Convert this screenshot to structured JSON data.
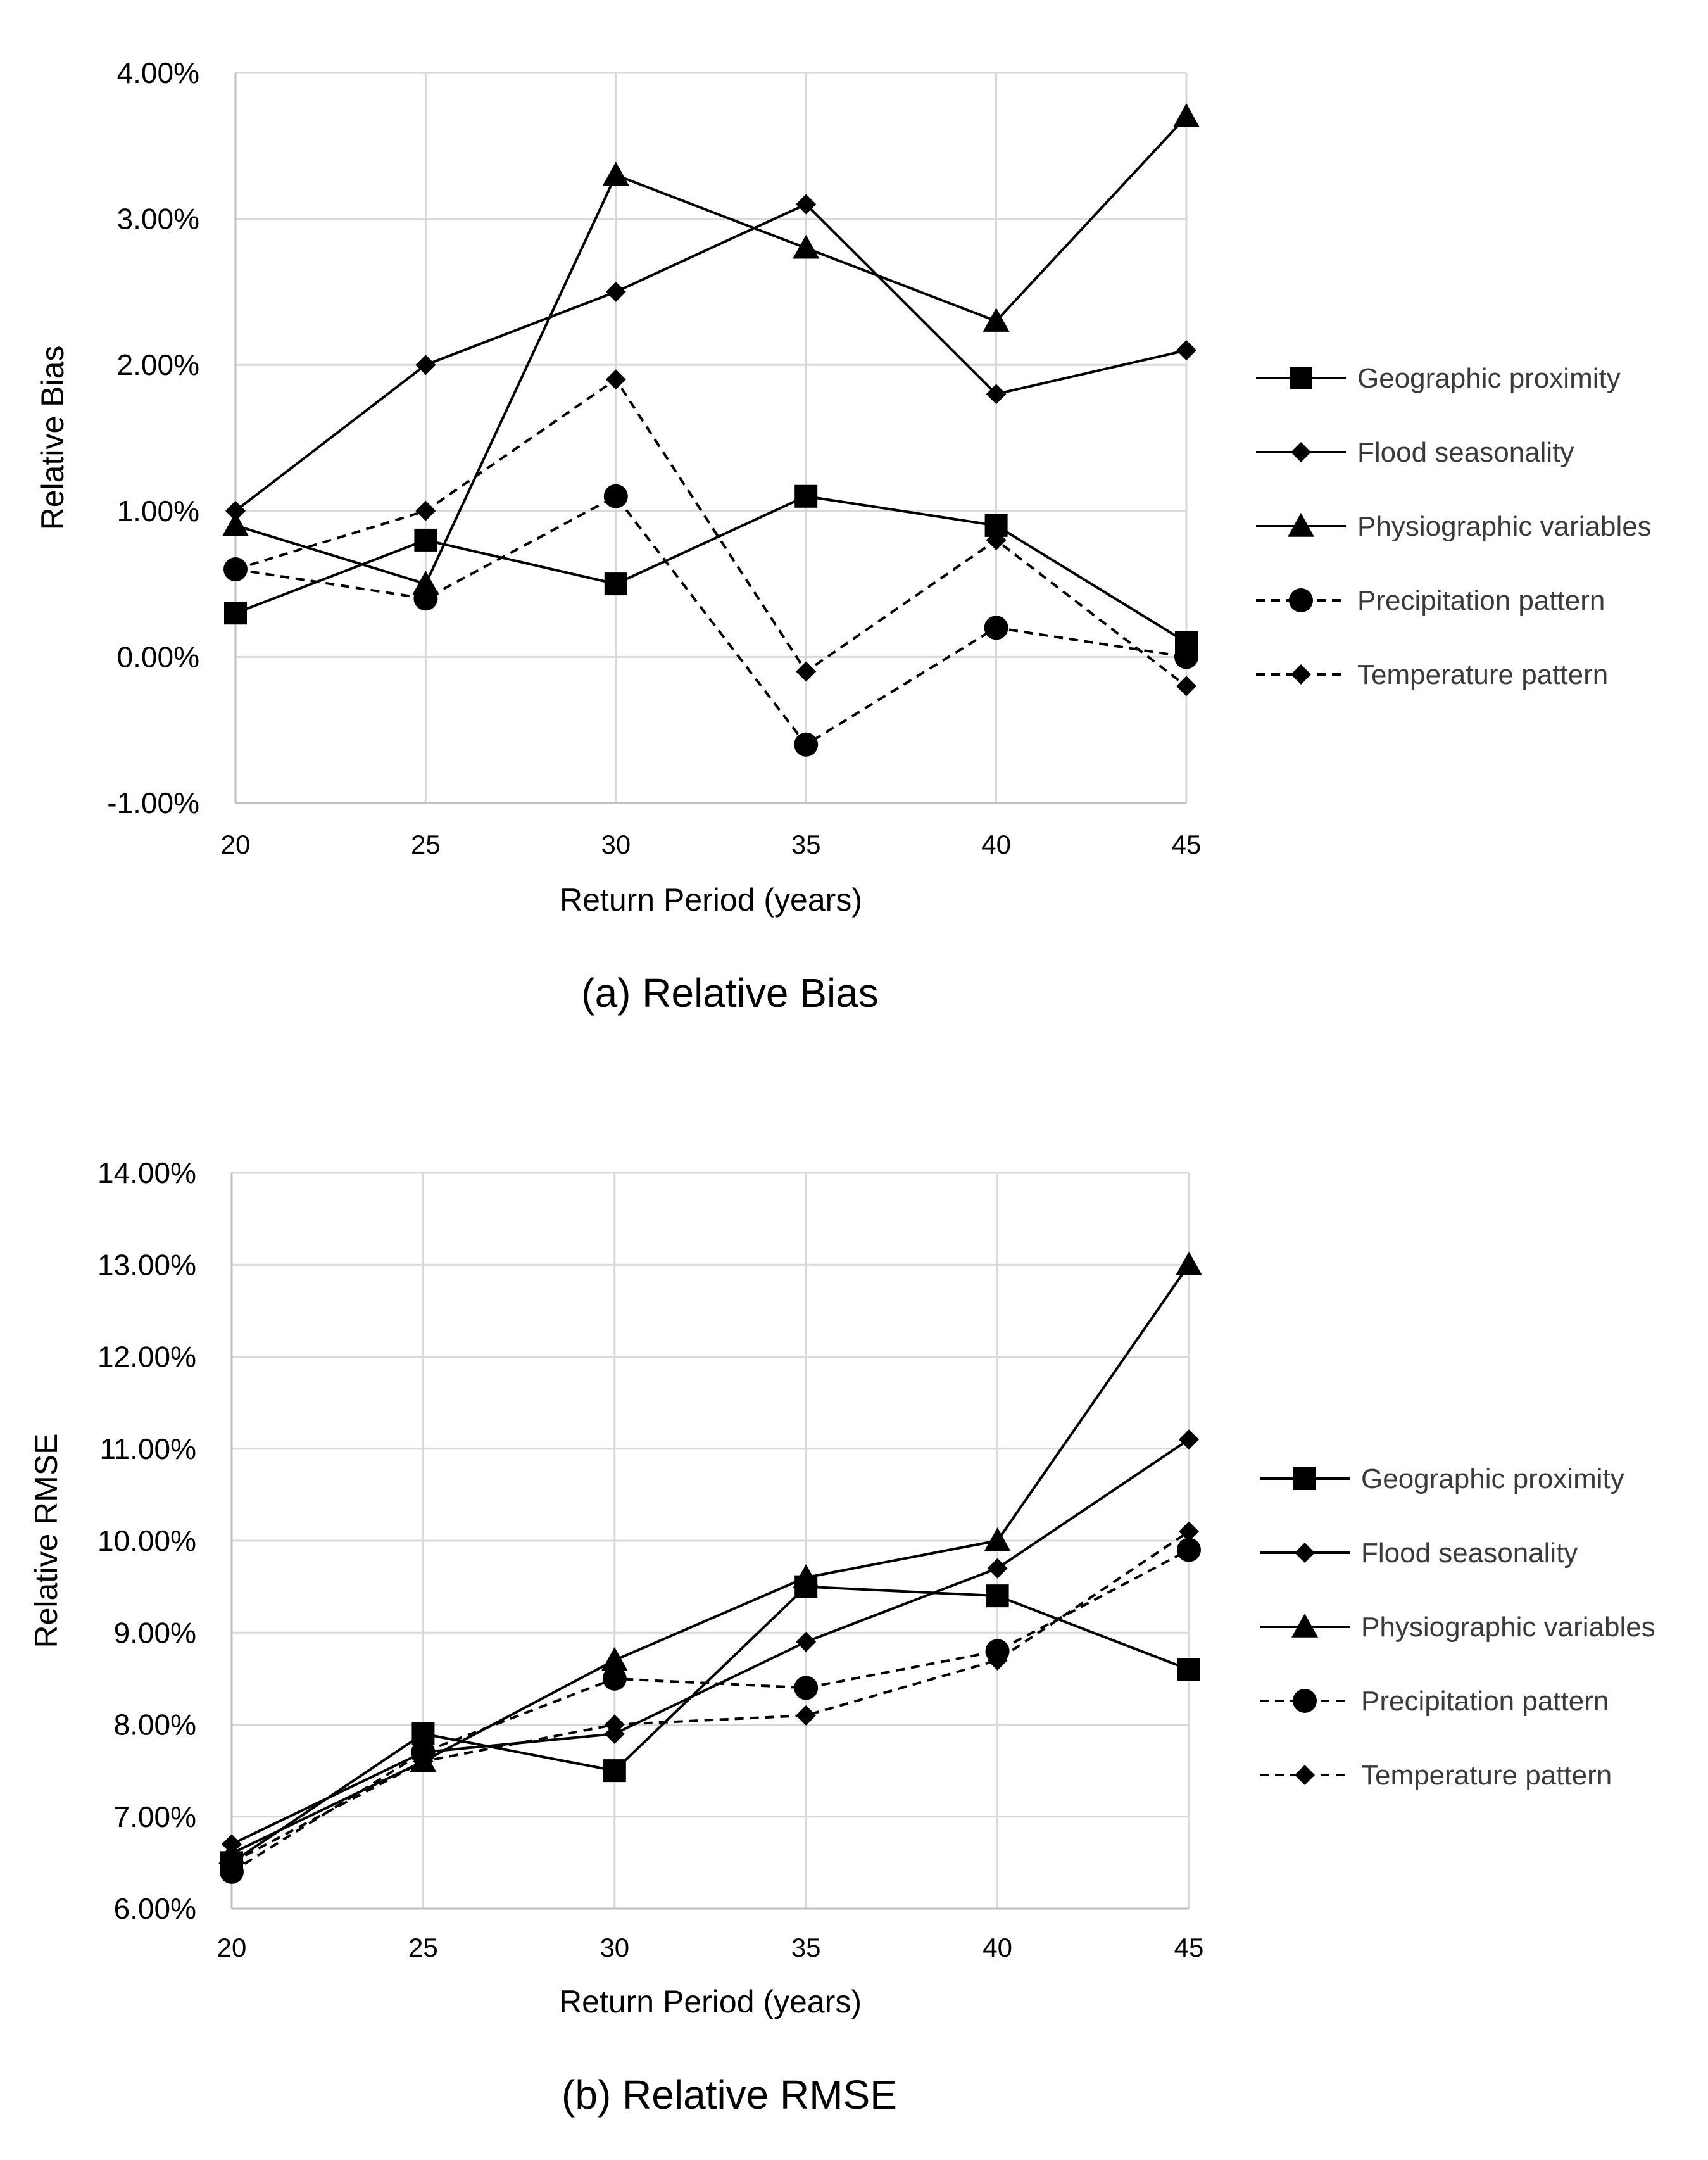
{
  "chart_data": [
    {
      "type": "line",
      "caption": "(a) Relative Bias",
      "xlabel": "Return Period (years)",
      "ylabel": "Relative Bias",
      "x": [
        20,
        25,
        30,
        35,
        40,
        45
      ],
      "ylim": [
        -1.0,
        4.0
      ],
      "yticks": [
        -1.0,
        0.0,
        1.0,
        2.0,
        3.0,
        4.0
      ],
      "ytick_labels": [
        "-1.00%",
        "0.00%",
        "1.00%",
        "2.00%",
        "3.00%",
        "4.00%"
      ],
      "grid": true,
      "legend_position": "right",
      "series": [
        {
          "name": "Geographic proximity",
          "marker": "square",
          "dash": "solid",
          "values": [
            0.3,
            0.8,
            0.5,
            1.1,
            0.9,
            0.1
          ]
        },
        {
          "name": "Flood seasonality",
          "marker": "diamond",
          "dash": "solid",
          "values": [
            1.0,
            2.0,
            2.5,
            3.1,
            1.8,
            2.1
          ]
        },
        {
          "name": "Physiographic variables",
          "marker": "triangle",
          "dash": "solid",
          "values": [
            0.9,
            0.5,
            3.3,
            2.8,
            2.3,
            3.7
          ]
        },
        {
          "name": "Precipitation pattern",
          "marker": "circle",
          "dash": "dashed",
          "values": [
            0.6,
            0.4,
            1.1,
            -0.6,
            0.2,
            0.0
          ]
        },
        {
          "name": "Temperature pattern",
          "marker": "diamond",
          "dash": "dashed",
          "values": [
            0.6,
            1.0,
            1.9,
            -0.1,
            0.8,
            -0.2
          ]
        }
      ]
    },
    {
      "type": "line",
      "caption": "(b) Relative RMSE",
      "xlabel": "Return Period (years)",
      "ylabel": "Relative RMSE",
      "x": [
        20,
        25,
        30,
        35,
        40,
        45
      ],
      "ylim": [
        6.0,
        14.0
      ],
      "yticks": [
        6.0,
        7.0,
        8.0,
        9.0,
        10.0,
        11.0,
        12.0,
        13.0,
        14.0
      ],
      "ytick_labels": [
        "6.00%",
        "7.00%",
        "8.00%",
        "9.00%",
        "10.00%",
        "11.00%",
        "12.00%",
        "13.00%",
        "14.00%"
      ],
      "grid": true,
      "legend_position": "right",
      "series": [
        {
          "name": "Geographic proximity",
          "marker": "square",
          "dash": "solid",
          "values": [
            6.5,
            7.9,
            7.5,
            9.5,
            9.4,
            8.6
          ]
        },
        {
          "name": "Flood seasonality",
          "marker": "diamond",
          "dash": "solid",
          "values": [
            6.7,
            7.7,
            7.9,
            8.9,
            9.7,
            11.1
          ]
        },
        {
          "name": "Physiographic variables",
          "marker": "triangle",
          "dash": "solid",
          "values": [
            6.6,
            7.6,
            8.7,
            9.6,
            10.0,
            13.0
          ]
        },
        {
          "name": "Precipitation pattern",
          "marker": "circle",
          "dash": "dashed",
          "values": [
            6.4,
            7.7,
            8.5,
            8.4,
            8.8,
            9.9
          ]
        },
        {
          "name": "Temperature pattern",
          "marker": "diamond",
          "dash": "dashed",
          "values": [
            6.5,
            7.6,
            8.0,
            8.1,
            8.7,
            10.1
          ]
        }
      ]
    }
  ]
}
